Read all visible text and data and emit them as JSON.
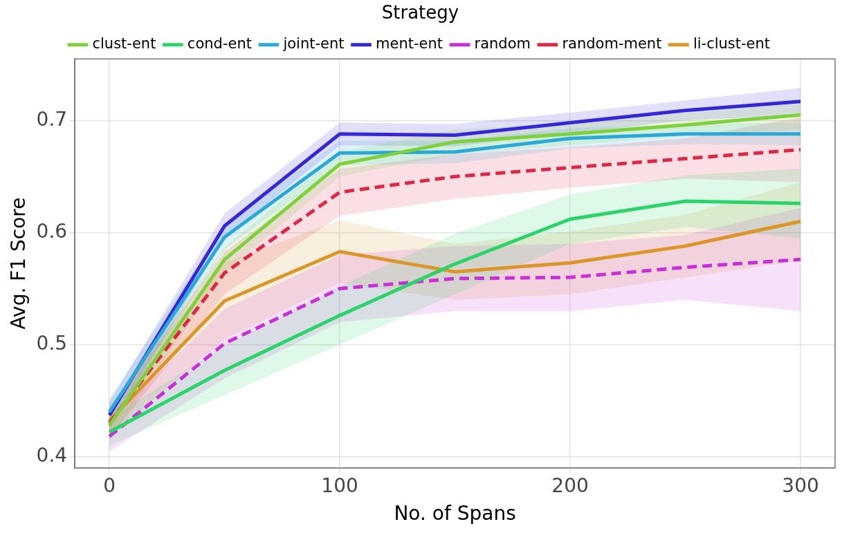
{
  "chart_data": {
    "type": "line",
    "xlabel": "No. of Spans",
    "ylabel": "Avg. F1 Score",
    "legend_title": "Strategy",
    "legend": "top",
    "grid": true,
    "marker": "none",
    "xlim": [
      -15,
      315
    ],
    "xticks": [
      0,
      100,
      200,
      300
    ],
    "ylim": [
      0.39,
      0.755
    ],
    "yticks": [
      0.4,
      0.5,
      0.6,
      0.7
    ],
    "x": [
      0,
      50,
      100,
      150,
      200,
      250,
      300
    ],
    "series": [
      {
        "name": "clust-ent",
        "color": "#7fd13b",
        "line_style": "solid",
        "values": [
          0.428,
          0.576,
          0.661,
          0.681,
          0.688,
          0.696,
          0.705
        ],
        "lower": [
          0.415,
          0.565,
          0.65,
          0.67,
          0.678,
          0.686,
          0.692
        ],
        "upper": [
          0.441,
          0.587,
          0.672,
          0.692,
          0.698,
          0.706,
          0.718
        ]
      },
      {
        "name": "cond-ent",
        "color": "#2ad46a",
        "line_style": "solid",
        "values": [
          0.422,
          0.477,
          0.526,
          0.572,
          0.612,
          0.628,
          0.626
        ],
        "lower": [
          0.41,
          0.455,
          0.5,
          0.545,
          0.59,
          0.605,
          0.595
        ],
        "upper": [
          0.434,
          0.499,
          0.552,
          0.599,
          0.634,
          0.651,
          0.657
        ]
      },
      {
        "name": "joint-ent",
        "color": "#2aa9d8",
        "line_style": "solid",
        "values": [
          0.44,
          0.596,
          0.671,
          0.672,
          0.684,
          0.688,
          0.688
        ],
        "lower": [
          0.428,
          0.585,
          0.66,
          0.662,
          0.675,
          0.679,
          0.678
        ],
        "upper": [
          0.452,
          0.607,
          0.682,
          0.682,
          0.693,
          0.697,
          0.698
        ]
      },
      {
        "name": "ment-ent",
        "color": "#3427d8",
        "line_style": "solid",
        "values": [
          0.437,
          0.606,
          0.688,
          0.687,
          0.698,
          0.709,
          0.717
        ],
        "lower": [
          0.425,
          0.595,
          0.678,
          0.677,
          0.689,
          0.7,
          0.705
        ],
        "upper": [
          0.449,
          0.617,
          0.698,
          0.697,
          0.707,
          0.718,
          0.729
        ]
      },
      {
        "name": "random",
        "color": "#c92fd6",
        "line_style": "dashed",
        "values": [
          0.418,
          0.501,
          0.55,
          0.559,
          0.56,
          0.569,
          0.576
        ],
        "lower": [
          0.405,
          0.47,
          0.52,
          0.53,
          0.53,
          0.54,
          0.53
        ],
        "upper": [
          0.431,
          0.532,
          0.58,
          0.588,
          0.59,
          0.598,
          0.622
        ]
      },
      {
        "name": "random-ment",
        "color": "#dc2747",
        "line_style": "dashed",
        "values": [
          0.43,
          0.564,
          0.636,
          0.65,
          0.658,
          0.666,
          0.674
        ],
        "lower": [
          0.417,
          0.545,
          0.615,
          0.63,
          0.64,
          0.648,
          0.645
        ],
        "upper": [
          0.443,
          0.583,
          0.657,
          0.67,
          0.676,
          0.684,
          0.703
        ]
      },
      {
        "name": "li-clust-ent",
        "color": "#da9628",
        "line_style": "solid",
        "values": [
          0.432,
          0.539,
          0.583,
          0.565,
          0.573,
          0.588,
          0.61
        ],
        "lower": [
          0.418,
          0.505,
          0.555,
          0.54,
          0.545,
          0.56,
          0.575
        ],
        "upper": [
          0.446,
          0.573,
          0.611,
          0.59,
          0.601,
          0.616,
          0.645
        ]
      }
    ]
  }
}
